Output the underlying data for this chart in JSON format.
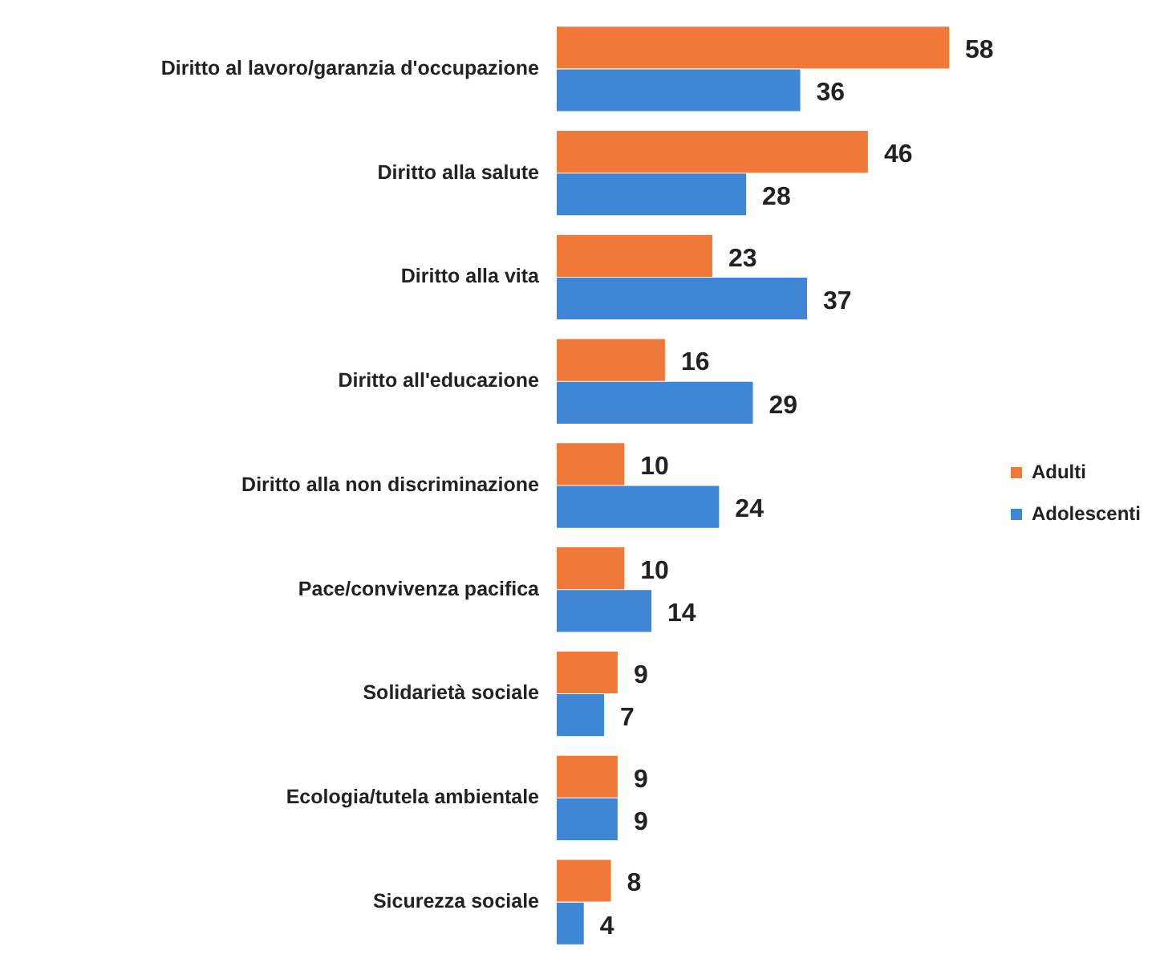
{
  "chart_data": {
    "type": "bar",
    "orientation": "horizontal",
    "categories": [
      "Diritto al lavoro/garanzia d'occupazione",
      "Diritto alla salute",
      "Diritto alla vita",
      "Diritto all'educazione",
      "Diritto alla non discriminazione",
      "Pace/convivenza pacifica",
      "Solidarietà sociale",
      "Ecologia/tutela ambientale",
      "Sicurezza sociale"
    ],
    "series": [
      {
        "name": "Adulti",
        "color": "#f07838",
        "values": [
          58,
          46,
          23,
          16,
          10,
          10,
          9,
          9,
          8
        ]
      },
      {
        "name": "Adolescenti",
        "color": "#3f87d4",
        "values": [
          36,
          28,
          37,
          29,
          24,
          14,
          7,
          9,
          4
        ]
      }
    ],
    "data_labels": true,
    "legend": "right"
  }
}
